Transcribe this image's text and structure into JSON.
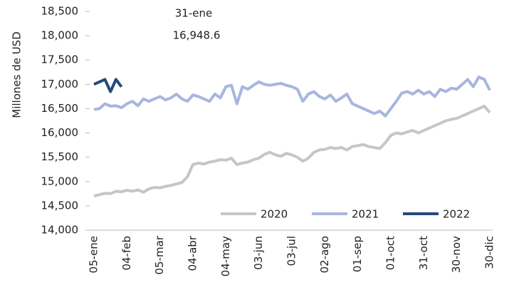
{
  "chart_data": {
    "type": "line",
    "ylabel": "Millones de USD",
    "categories": [
      "05-ene",
      null,
      null,
      null,
      null,
      null,
      "04-feb",
      null,
      null,
      null,
      null,
      null,
      "05-mar",
      null,
      null,
      null,
      null,
      null,
      "04-abr",
      null,
      null,
      null,
      null,
      null,
      "04-may",
      null,
      null,
      null,
      null,
      null,
      "03-jun",
      null,
      null,
      null,
      null,
      null,
      "03-jul",
      null,
      null,
      null,
      null,
      null,
      "02-ago",
      null,
      null,
      null,
      null,
      null,
      "01-sep",
      null,
      null,
      null,
      null,
      null,
      "01-oct",
      null,
      null,
      null,
      null,
      null,
      "31-oct",
      null,
      null,
      null,
      null,
      null,
      "30-nov",
      null,
      null,
      null,
      null,
      null,
      "30-dic"
    ],
    "series": [
      {
        "name": "2020",
        "color": "#c6c6c6",
        "values": [
          14700,
          14730,
          14760,
          14750,
          14800,
          14790,
          14820,
          14800,
          14830,
          14780,
          14850,
          14880,
          14870,
          14900,
          14920,
          14950,
          14980,
          15100,
          15350,
          15380,
          15360,
          15400,
          15420,
          15450,
          15440,
          15480,
          15350,
          15380,
          15400,
          15450,
          15480,
          15560,
          15600,
          15550,
          15520,
          15580,
          15550,
          15500,
          15420,
          15480,
          15600,
          15650,
          15660,
          15700,
          15680,
          15700,
          15650,
          15720,
          15740,
          15760,
          15720,
          15700,
          15680,
          15800,
          15950,
          16000,
          15980,
          16020,
          16050,
          16000,
          16050,
          16100,
          16150,
          16200,
          16250,
          16280,
          16300,
          16350,
          16400,
          16450,
          16500,
          16550,
          16420
        ]
      },
      {
        "name": "2021",
        "color": "#a7b6df",
        "values": [
          16480,
          16500,
          16600,
          16550,
          16560,
          16520,
          16600,
          16650,
          16560,
          16700,
          16650,
          16700,
          16750,
          16680,
          16720,
          16800,
          16700,
          16650,
          16780,
          16750,
          16700,
          16650,
          16800,
          16720,
          16950,
          16980,
          16600,
          16950,
          16900,
          16980,
          17050,
          17000,
          16980,
          17000,
          17020,
          16980,
          16950,
          16900,
          16650,
          16800,
          16850,
          16750,
          16700,
          16780,
          16650,
          16720,
          16800,
          16600,
          16550,
          16500,
          16450,
          16400,
          16450,
          16350,
          16500,
          16650,
          16820,
          16850,
          16800,
          16880,
          16800,
          16850,
          16750,
          16900,
          16850,
          16920,
          16900,
          17000,
          17100,
          16950,
          17150,
          17100,
          16880
        ]
      },
      {
        "name": "2022",
        "color": "#254a7a",
        "values": [
          17000,
          17050,
          17100,
          16850,
          17100,
          16948.6,
          null,
          null,
          null,
          null,
          null,
          null,
          null,
          null,
          null,
          null,
          null,
          null,
          null,
          null,
          null,
          null,
          null,
          null,
          null,
          null,
          null,
          null,
          null,
          null,
          null,
          null,
          null,
          null,
          null,
          null,
          null,
          null,
          null,
          null,
          null,
          null,
          null,
          null,
          null,
          null,
          null,
          null,
          null,
          null,
          null,
          null,
          null,
          null,
          null,
          null,
          null,
          null,
          null,
          null,
          null,
          null,
          null,
          null,
          null,
          null,
          null,
          null,
          null,
          null,
          null,
          null,
          null
        ]
      }
    ],
    "annotations": [
      "31-ene",
      "16,948.6"
    ],
    "ylim": [
      14000,
      18500
    ],
    "yticks": [
      {
        "value": 14000,
        "label": "14,000"
      },
      {
        "value": 14500,
        "label": "14,500"
      },
      {
        "value": 15000,
        "label": "15,000"
      },
      {
        "value": 15500,
        "label": "15,500"
      },
      {
        "value": 16000,
        "label": "16,000"
      },
      {
        "value": 16500,
        "label": "16,500"
      },
      {
        "value": 17000,
        "label": "17,000"
      },
      {
        "value": 17500,
        "label": "17,500"
      },
      {
        "value": 18000,
        "label": "18,000"
      },
      {
        "value": 18500,
        "label": "18,500"
      }
    ],
    "legend": "lower-right"
  }
}
